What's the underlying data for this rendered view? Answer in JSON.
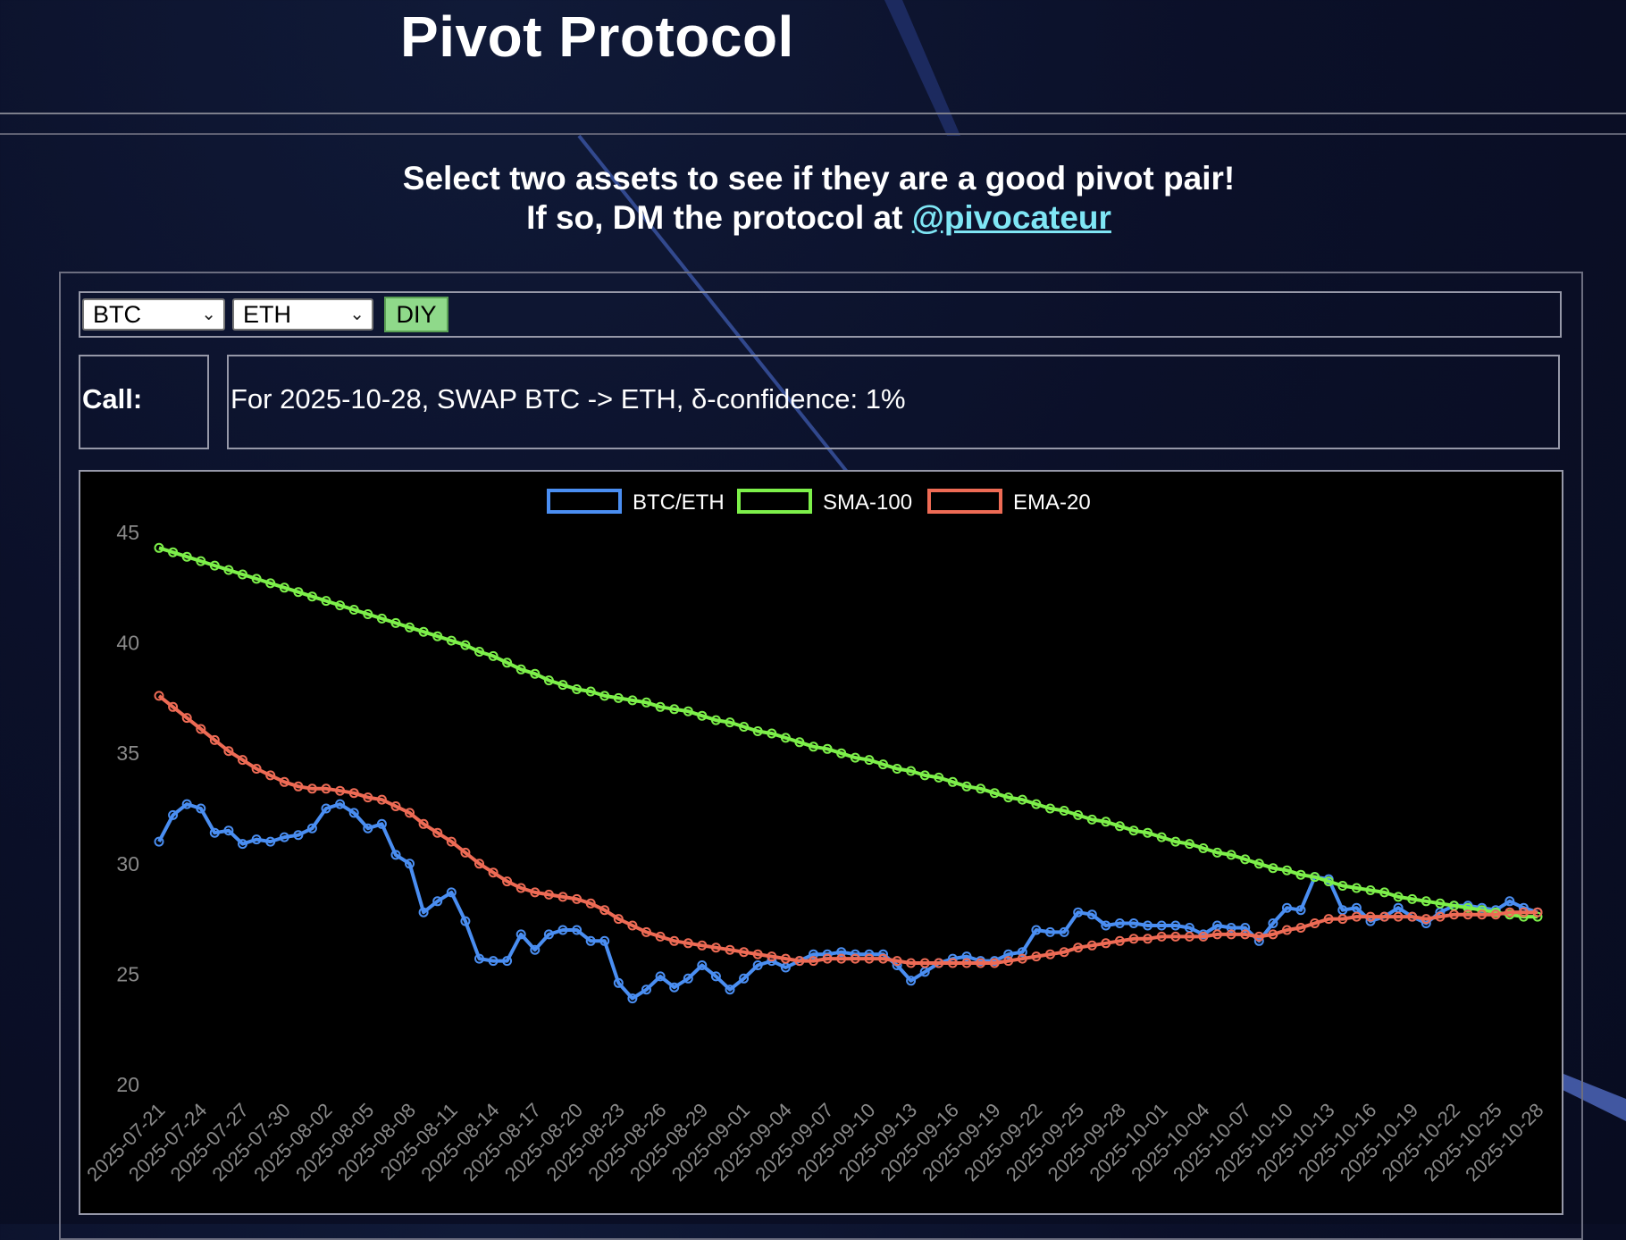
{
  "header": {
    "title": "Pivot Protocol"
  },
  "intro": {
    "line1": "Select two assets to see if they are a good pivot pair!",
    "line2_prefix": "If so, DM the protocol at ",
    "handle": "@pivocateur"
  },
  "controls": {
    "asset_a": "BTC",
    "asset_b": "ETH",
    "diy_label": "DIY"
  },
  "call": {
    "label": "Call:",
    "text": "For 2025-10-28, SWAP BTC -> ETH, δ-confidence: 1%"
  },
  "colors": {
    "btc_eth": "#4a8ef2",
    "sma": "#7df04a",
    "ema": "#ee6b55",
    "chart_bg": "#000000"
  },
  "chart_data": {
    "type": "line",
    "title": "",
    "xlabel": "",
    "ylabel": "",
    "ylim": [
      20,
      45
    ],
    "yticks": [
      20,
      25,
      30,
      35,
      40,
      45
    ],
    "legend_position": "top-center",
    "x": [
      "2025-07-21",
      "2025-07-22",
      "2025-07-23",
      "2025-07-24",
      "2025-07-25",
      "2025-07-26",
      "2025-07-27",
      "2025-07-28",
      "2025-07-29",
      "2025-07-30",
      "2025-07-31",
      "2025-08-01",
      "2025-08-02",
      "2025-08-03",
      "2025-08-04",
      "2025-08-05",
      "2025-08-06",
      "2025-08-07",
      "2025-08-08",
      "2025-08-09",
      "2025-08-10",
      "2025-08-11",
      "2025-08-12",
      "2025-08-13",
      "2025-08-14",
      "2025-08-15",
      "2025-08-16",
      "2025-08-17",
      "2025-08-18",
      "2025-08-19",
      "2025-08-20",
      "2025-08-21",
      "2025-08-22",
      "2025-08-23",
      "2025-08-24",
      "2025-08-25",
      "2025-08-26",
      "2025-08-27",
      "2025-08-28",
      "2025-08-29",
      "2025-08-30",
      "2025-08-31",
      "2025-09-01",
      "2025-09-02",
      "2025-09-03",
      "2025-09-04",
      "2025-09-05",
      "2025-09-06",
      "2025-09-07",
      "2025-09-08",
      "2025-09-09",
      "2025-09-10",
      "2025-09-11",
      "2025-09-12",
      "2025-09-13",
      "2025-09-14",
      "2025-09-15",
      "2025-09-16",
      "2025-09-17",
      "2025-09-18",
      "2025-09-19",
      "2025-09-20",
      "2025-09-21",
      "2025-09-22",
      "2025-09-23",
      "2025-09-24",
      "2025-09-25",
      "2025-09-26",
      "2025-09-27",
      "2025-09-28",
      "2025-09-29",
      "2025-09-30",
      "2025-10-01",
      "2025-10-02",
      "2025-10-03",
      "2025-10-04",
      "2025-10-05",
      "2025-10-06",
      "2025-10-07",
      "2025-10-08",
      "2025-10-09",
      "2025-10-10",
      "2025-10-11",
      "2025-10-12",
      "2025-10-13",
      "2025-10-14",
      "2025-10-15",
      "2025-10-16",
      "2025-10-17",
      "2025-10-18",
      "2025-10-19",
      "2025-10-20",
      "2025-10-21",
      "2025-10-22",
      "2025-10-23",
      "2025-10-24",
      "2025-10-25",
      "2025-10-26",
      "2025-10-27",
      "2025-10-28"
    ],
    "x_tick_labels": [
      "2025-07-21",
      "2025-07-24",
      "2025-07-27",
      "2025-07-30",
      "2025-08-02",
      "2025-08-05",
      "2025-08-08",
      "2025-08-11",
      "2025-08-14",
      "2025-08-17",
      "2025-08-20",
      "2025-08-23",
      "2025-08-26",
      "2025-08-29",
      "2025-09-01",
      "2025-09-04",
      "2025-09-07",
      "2025-09-10",
      "2025-09-13",
      "2025-09-16",
      "2025-09-19",
      "2025-09-22",
      "2025-09-25",
      "2025-09-28",
      "2025-10-01",
      "2025-10-04",
      "2025-10-07",
      "2025-10-10",
      "2025-10-13",
      "2025-10-16",
      "2025-10-19",
      "2025-10-22",
      "2025-10-25",
      "2025-10-28"
    ],
    "series": [
      {
        "name": "BTC/ETH",
        "color": "#4a8ef2",
        "values": [
          31.0,
          32.2,
          32.7,
          32.5,
          31.4,
          31.5,
          30.9,
          31.1,
          31.0,
          31.2,
          31.3,
          31.6,
          32.5,
          32.7,
          32.3,
          31.6,
          31.8,
          30.4,
          30.0,
          27.8,
          28.3,
          28.7,
          27.4,
          25.7,
          25.6,
          25.6,
          26.8,
          26.1,
          26.8,
          27.0,
          27.0,
          26.5,
          26.5,
          24.6,
          23.9,
          24.3,
          24.9,
          24.4,
          24.8,
          25.4,
          24.9,
          24.3,
          24.8,
          25.4,
          25.6,
          25.3,
          25.6,
          25.9,
          25.9,
          26.0,
          25.9,
          25.9,
          25.9,
          25.4,
          24.7,
          25.1,
          25.5,
          25.7,
          25.8,
          25.6,
          25.6,
          25.9,
          26.0,
          27.0,
          26.9,
          26.9,
          27.8,
          27.7,
          27.2,
          27.3,
          27.3,
          27.2,
          27.2,
          27.2,
          27.1,
          26.8,
          27.2,
          27.1,
          27.1,
          26.5,
          27.3,
          28.0,
          27.9,
          29.4,
          29.3,
          27.9,
          28.0,
          27.4,
          27.6,
          28.0,
          27.6,
          27.3,
          27.8,
          28.1,
          28.1,
          28.0,
          27.9,
          28.3,
          28.0,
          27.8
        ]
      },
      {
        "name": "SMA-100",
        "color": "#7df04a",
        "values": [
          44.3,
          44.1,
          43.9,
          43.7,
          43.5,
          43.3,
          43.1,
          42.9,
          42.7,
          42.5,
          42.3,
          42.1,
          41.9,
          41.7,
          41.5,
          41.3,
          41.1,
          40.9,
          40.7,
          40.5,
          40.3,
          40.1,
          39.9,
          39.6,
          39.4,
          39.1,
          38.8,
          38.6,
          38.3,
          38.1,
          37.9,
          37.8,
          37.6,
          37.5,
          37.4,
          37.3,
          37.1,
          37.0,
          36.9,
          36.7,
          36.5,
          36.4,
          36.2,
          36.0,
          35.9,
          35.7,
          35.5,
          35.3,
          35.2,
          35.0,
          34.8,
          34.7,
          34.5,
          34.3,
          34.2,
          34.0,
          33.9,
          33.7,
          33.5,
          33.4,
          33.2,
          33.0,
          32.9,
          32.7,
          32.5,
          32.4,
          32.2,
          32.0,
          31.9,
          31.7,
          31.5,
          31.4,
          31.2,
          31.0,
          30.9,
          30.7,
          30.5,
          30.4,
          30.2,
          30.0,
          29.8,
          29.7,
          29.5,
          29.4,
          29.2,
          29.0,
          28.9,
          28.8,
          28.7,
          28.5,
          28.4,
          28.3,
          28.2,
          28.1,
          28.0,
          27.9,
          27.8,
          27.7,
          27.6,
          27.6
        ]
      },
      {
        "name": "EMA-20",
        "color": "#ee6b55",
        "values": [
          37.6,
          37.1,
          36.6,
          36.1,
          35.6,
          35.1,
          34.7,
          34.3,
          34.0,
          33.7,
          33.5,
          33.4,
          33.4,
          33.3,
          33.2,
          33.0,
          32.9,
          32.6,
          32.3,
          31.8,
          31.4,
          31.0,
          30.5,
          30.0,
          29.6,
          29.2,
          28.9,
          28.7,
          28.6,
          28.5,
          28.4,
          28.2,
          27.9,
          27.5,
          27.2,
          26.9,
          26.7,
          26.5,
          26.4,
          26.3,
          26.2,
          26.1,
          26.0,
          25.9,
          25.8,
          25.7,
          25.6,
          25.6,
          25.7,
          25.7,
          25.7,
          25.7,
          25.7,
          25.6,
          25.5,
          25.5,
          25.5,
          25.5,
          25.5,
          25.5,
          25.5,
          25.6,
          25.7,
          25.8,
          25.9,
          26.0,
          26.2,
          26.3,
          26.4,
          26.5,
          26.6,
          26.6,
          26.7,
          26.7,
          26.7,
          26.7,
          26.8,
          26.8,
          26.8,
          26.7,
          26.8,
          27.0,
          27.1,
          27.3,
          27.5,
          27.5,
          27.6,
          27.6,
          27.6,
          27.6,
          27.6,
          27.5,
          27.6,
          27.7,
          27.7,
          27.7,
          27.7,
          27.8,
          27.8,
          27.8
        ]
      }
    ]
  }
}
